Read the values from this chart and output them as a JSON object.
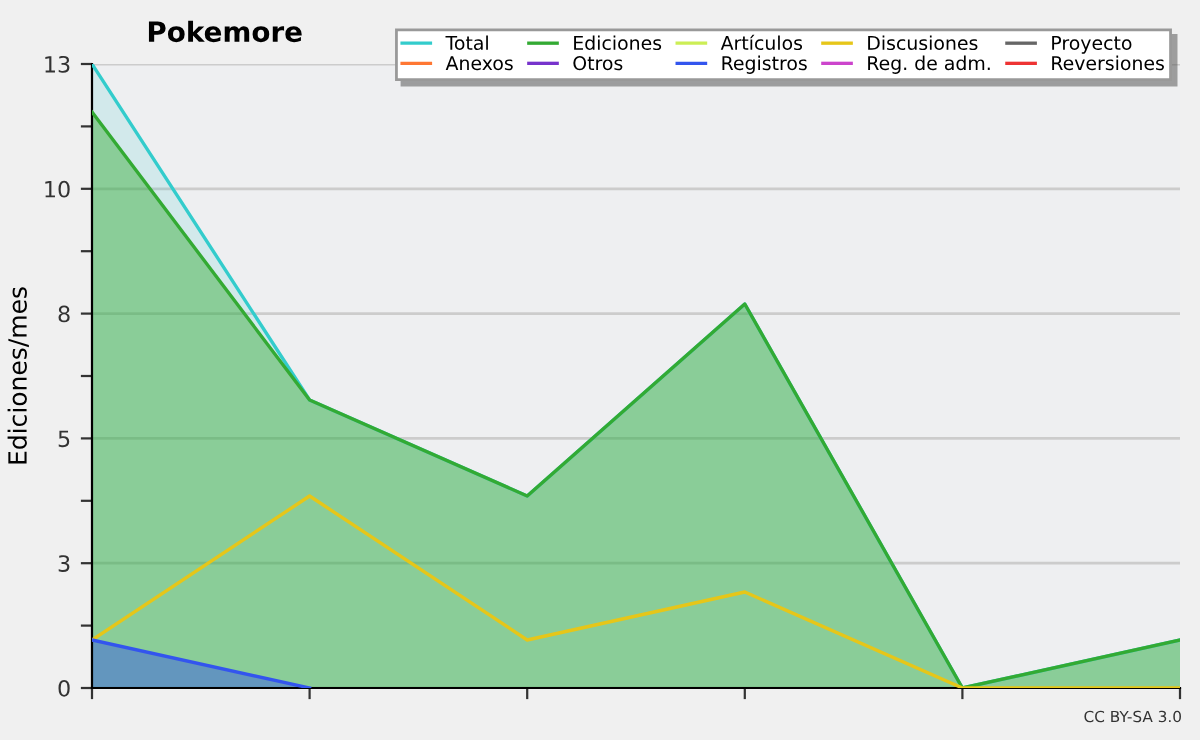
{
  "chart_data": {
    "type": "area",
    "title": "Pokemore",
    "ylabel": "Ediciones/mes",
    "categories": [
      null,
      null,
      null,
      null,
      null,
      null
    ],
    "series": [
      {
        "name": "Total",
        "color": "#33cccc",
        "values": [
          13,
          6,
          4,
          8,
          0,
          1
        ]
      },
      {
        "name": "Ediciones",
        "color": "#33aa33",
        "values": [
          12,
          6,
          4,
          8,
          0,
          1
        ]
      },
      {
        "name": "Artículos",
        "color": "#ccee55",
        "type": "line",
        "values": [
          null,
          null,
          null,
          null,
          null,
          null
        ]
      },
      {
        "name": "Discusiones",
        "color": "#e6c619",
        "type": "line",
        "values": [
          1,
          4,
          1,
          2,
          0,
          0
        ]
      },
      {
        "name": "Proyecto",
        "color": "#666666",
        "type": "line",
        "values": [
          null,
          null,
          null,
          null,
          null,
          null
        ]
      },
      {
        "name": "Anexos",
        "color": "#ff7733",
        "type": "line",
        "values": [
          null,
          null,
          null,
          null,
          null,
          null
        ]
      },
      {
        "name": "Otros",
        "color": "#7733cc",
        "type": "line",
        "values": [
          null,
          null,
          null,
          null,
          null,
          null
        ]
      },
      {
        "name": "Registros",
        "color": "#3355ee",
        "values": [
          1,
          0,
          null,
          null,
          null,
          null
        ]
      },
      {
        "name": "Reg. de adm.",
        "color": "#cc44cc",
        "type": "line",
        "values": [
          null,
          null,
          null,
          null,
          null,
          null
        ]
      },
      {
        "name": "Reversiones",
        "color": "#ee3333",
        "type": "line",
        "values": [
          null,
          null,
          null,
          null,
          null,
          null
        ]
      }
    ],
    "ylim": [
      0,
      13
    ],
    "yticks": [
      0,
      {
        "value": 1.3,
        "label": null
      },
      {
        "value": 2.6,
        "label": "3"
      },
      {
        "value": 3.9,
        "label": null
      },
      {
        "value": 5.2,
        "label": "5"
      },
      {
        "value": 6.5,
        "label": null
      },
      {
        "value": 7.8,
        "label": "8"
      },
      {
        "value": 9.1,
        "label": null
      },
      {
        "value": 10.4,
        "label": "10"
      },
      {
        "value": 11.7,
        "label": null
      },
      13
    ],
    "grid": "y",
    "legend": "top right",
    "annotations": [
      "CC BY-SA 3.0"
    ]
  }
}
